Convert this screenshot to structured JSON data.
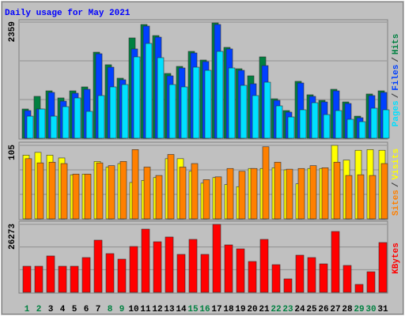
{
  "chart_data": [
    {
      "type": "bar",
      "title": "Daily usage for May 2021",
      "ylim": [
        0,
        2359
      ],
      "yticks": [
        2359
      ],
      "legend_separator": "/",
      "series": [
        {
          "name": "Hits",
          "color": "#008040",
          "values": [
            594,
            851,
            963,
            819,
            963,
            1043,
            1749,
            1493,
            1220,
            2038,
            2311,
            2086,
            1316,
            1460,
            1765,
            1589,
            2343,
            1846,
            1412,
            1268,
            1653,
            802,
            562,
            1156,
            883,
            770,
            995,
            738,
            449,
            899,
            963
          ]
        },
        {
          "name": "Files",
          "color": "#0040ff",
          "values": [
            562,
            594,
            931,
            754,
            915,
            995,
            1717,
            1444,
            1188,
            1814,
            2279,
            2054,
            1268,
            1428,
            1733,
            1557,
            2311,
            1814,
            1380,
            1107,
            1476,
            770,
            530,
            1123,
            851,
            738,
            963,
            706,
            417,
            867,
            931
          ]
        },
        {
          "name": "Pages",
          "color": "#00e0ff",
          "values": [
            449,
            594,
            449,
            642,
            819,
            546,
            867,
            1043,
            1091,
            1653,
            1926,
            1637,
            1091,
            1043,
            1444,
            1380,
            1765,
            1428,
            1075,
            867,
            1139,
            658,
            433,
            578,
            722,
            481,
            562,
            385,
            337,
            610,
            578
          ]
        }
      ]
    },
    {
      "type": "bar",
      "ylim": [
        0,
        105
      ],
      "yticks": [
        105
      ],
      "legend_separator": "/",
      "series": [
        {
          "name": "Visits",
          "color": "#ffff00",
          "values": [
            91,
            95,
            91,
            87,
            63,
            64,
            82,
            74,
            79,
            52,
            55,
            59,
            86,
            86,
            68,
            51,
            59,
            49,
            46,
            72,
            72,
            73,
            70,
            50,
            72,
            72,
            105,
            84,
            98,
            99,
            98
          ]
        },
        {
          "name": "Sites",
          "color": "#ff8000",
          "values": [
            86,
            80,
            81,
            79,
            64,
            64,
            80,
            76,
            82,
            99,
            74,
            62,
            92,
            74,
            79,
            56,
            60,
            72,
            68,
            72,
            103,
            81,
            71,
            72,
            76,
            73,
            81,
            62,
            63,
            62,
            79
          ]
        }
      ]
    },
    {
      "type": "bar",
      "ylim": [
        0,
        26273
      ],
      "yticks": [
        26273
      ],
      "categories": [
        "1",
        "2",
        "3",
        "4",
        "5",
        "6",
        "7",
        "8",
        "9",
        "10",
        "11",
        "12",
        "13",
        "14",
        "15",
        "16",
        "17",
        "18",
        "19",
        "20",
        "21",
        "22",
        "23",
        "24",
        "25",
        "26",
        "27",
        "28",
        "29",
        "30",
        "31"
      ],
      "category_colors": [
        "#008040",
        "#008040",
        "#000000",
        "#000000",
        "#000000",
        "#000000",
        "#000000",
        "#008040",
        "#008040",
        "#000000",
        "#000000",
        "#000000",
        "#000000",
        "#000000",
        "#008040",
        "#008040",
        "#000000",
        "#000000",
        "#000000",
        "#000000",
        "#000000",
        "#008040",
        "#008040",
        "#000000",
        "#000000",
        "#000000",
        "#000000",
        "#000000",
        "#008040",
        "#008040",
        "#000000"
      ],
      "series": [
        {
          "name": "KBytes",
          "color": "#ff0000",
          "values": [
            10082,
            10082,
            14053,
            10082,
            10082,
            13442,
            20163,
            14969,
            12831,
            17719,
            24440,
            19552,
            21385,
            14664,
            20469,
            14664,
            26273,
            18330,
            16802,
            11914,
            20469,
            10692,
            5194,
            14358,
            13442,
            10998,
            23523,
            10387,
            3055,
            7943,
            19246
          ]
        }
      ]
    }
  ]
}
